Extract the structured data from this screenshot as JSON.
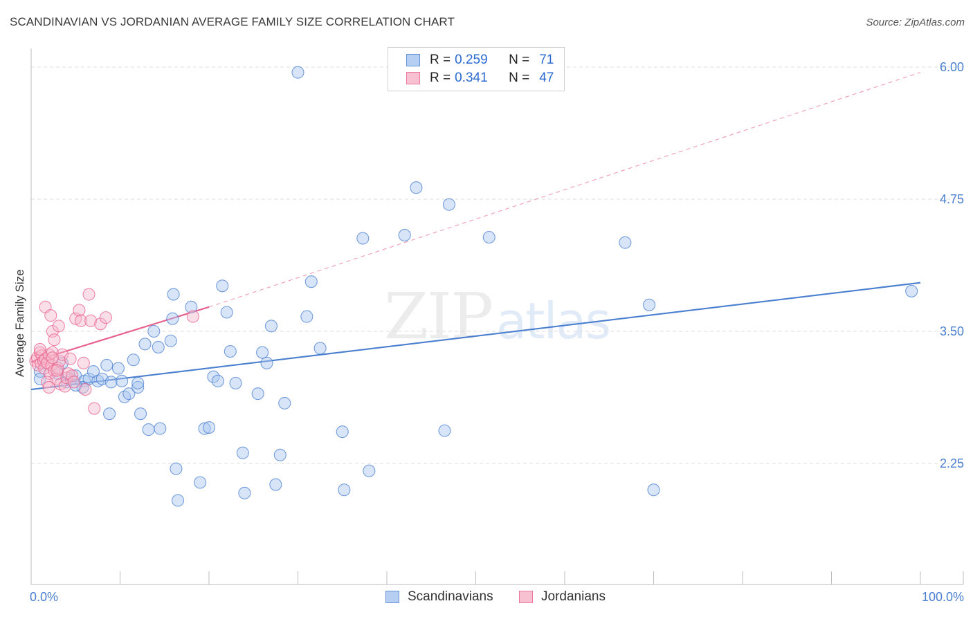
{
  "header": {
    "title": "SCANDINAVIAN VS JORDANIAN AVERAGE FAMILY SIZE CORRELATION CHART",
    "source": "Source: ZipAtlas.com"
  },
  "watermark": {
    "zip": "ZIP",
    "atlas": "atlas"
  },
  "legend": {
    "rows": [
      {
        "r_label": "R =",
        "r_value": "0.259",
        "n_label": "N =",
        "n_value": "71",
        "color": "#8fb4e8"
      },
      {
        "r_label": "R =",
        "r_value": "0.341",
        "n_label": "N =",
        "n_value": "47",
        "color": "#f2a0bc"
      }
    ]
  },
  "bottom_legend": {
    "items": [
      {
        "label": "Scandinavians",
        "color": "#8fb4e8"
      },
      {
        "label": "Jordanians",
        "color": "#f2a0bc"
      }
    ]
  },
  "chart_data": {
    "type": "scatter",
    "xlabel": "",
    "ylabel": "Average Family Size",
    "xlim": [
      0,
      100
    ],
    "ylim": [
      1.0,
      6.25
    ],
    "x_tick_labels": [
      "0.0%",
      "100.0%"
    ],
    "y_ticks": [
      2.25,
      3.5,
      4.75,
      6.0
    ],
    "y_tick_labels": [
      "2.25",
      "3.50",
      "4.75",
      "6.00"
    ],
    "grid": true,
    "series": [
      {
        "name": "Scandinavians",
        "color": "#4a7fd0",
        "fill": "#a9c6ef",
        "trend": {
          "x": [
            0,
            100
          ],
          "y": [
            2.95,
            3.96
          ],
          "style": "solid"
        },
        "points": [
          [
            1,
            3.12
          ],
          [
            1,
            3.05
          ],
          [
            3,
            3.1
          ],
          [
            3.5,
            3.2
          ],
          [
            4,
            3.02
          ],
          [
            4.5,
            3.05
          ],
          [
            5,
            3.08
          ],
          [
            6,
            3.03
          ],
          [
            6.5,
            3.05
          ],
          [
            5.8,
            2.97
          ],
          [
            7,
            3.12
          ],
          [
            7.5,
            3.03
          ],
          [
            8,
            3.05
          ],
          [
            8.5,
            3.18
          ],
          [
            9,
            3.02
          ],
          [
            9.8,
            3.15
          ],
          [
            10.2,
            3.03
          ],
          [
            10.5,
            2.88
          ],
          [
            11,
            2.91
          ],
          [
            11.5,
            3.23
          ],
          [
            12,
            2.97
          ],
          [
            12.8,
            3.38
          ],
          [
            12.3,
            2.72
          ],
          [
            8.8,
            2.72
          ],
          [
            13.8,
            3.5
          ],
          [
            14.3,
            3.35
          ],
          [
            15.7,
            3.41
          ],
          [
            15.9,
            3.62
          ],
          [
            14.5,
            2.58
          ],
          [
            16,
            3.85
          ],
          [
            16.3,
            2.2
          ],
          [
            16.5,
            1.9
          ],
          [
            18,
            3.73
          ],
          [
            19,
            2.07
          ],
          [
            19.5,
            2.58
          ],
          [
            20,
            2.59
          ],
          [
            20.5,
            3.07
          ],
          [
            21,
            3.03
          ],
          [
            21.5,
            3.93
          ],
          [
            22,
            3.68
          ],
          [
            22.4,
            3.31
          ],
          [
            23,
            3.01
          ],
          [
            23.8,
            2.35
          ],
          [
            24,
            1.97
          ],
          [
            25.5,
            2.91
          ],
          [
            26,
            3.3
          ],
          [
            26.5,
            3.2
          ],
          [
            27,
            3.55
          ],
          [
            27.5,
            2.05
          ],
          [
            28,
            2.33
          ],
          [
            28.5,
            2.82
          ],
          [
            31,
            3.64
          ],
          [
            31.5,
            3.97
          ],
          [
            32.5,
            3.34
          ],
          [
            35,
            2.55
          ],
          [
            35.2,
            2.0
          ],
          [
            37.3,
            4.38
          ],
          [
            38,
            2.18
          ],
          [
            30,
            5.95
          ],
          [
            42,
            4.41
          ],
          [
            43.3,
            4.86
          ],
          [
            46.5,
            2.56
          ],
          [
            47,
            4.7
          ],
          [
            51.5,
            4.39
          ],
          [
            66.8,
            4.34
          ],
          [
            69.5,
            3.75
          ],
          [
            70,
            2.0
          ],
          [
            99,
            3.88
          ],
          [
            13.2,
            2.57
          ],
          [
            12,
            3.01
          ],
          [
            5,
            2.99
          ]
        ]
      },
      {
        "name": "Jordanians",
        "color": "#e8628e",
        "fill": "#f6b7cb",
        "trend": {
          "x": [
            0,
            20
          ],
          "y": [
            3.21,
            3.73
          ],
          "style": "solid",
          "extended_x": [
            20,
            100
          ],
          "extended_y": [
            3.73,
            5.95
          ],
          "extended_style": "dashed"
        },
        "points": [
          [
            0.5,
            3.22
          ],
          [
            0.7,
            3.25
          ],
          [
            0.8,
            3.18
          ],
          [
            1,
            3.3
          ],
          [
            1.1,
            3.2
          ],
          [
            1.2,
            3.27
          ],
          [
            1.4,
            3.22
          ],
          [
            1.5,
            3.15
          ],
          [
            1.6,
            3.24
          ],
          [
            1.8,
            3.2
          ],
          [
            2.0,
            3.28
          ],
          [
            2.1,
            3.1
          ],
          [
            2.3,
            3.18
          ],
          [
            2.4,
            3.3
          ],
          [
            2.6,
            3.13
          ],
          [
            2.8,
            3.05
          ],
          [
            3.0,
            3.15
          ],
          [
            3.2,
            3.22
          ],
          [
            1.6,
            3.73
          ],
          [
            1.8,
            3.02
          ],
          [
            2.0,
            2.97
          ],
          [
            2.2,
            3.65
          ],
          [
            2.4,
            3.5
          ],
          [
            2.6,
            3.42
          ],
          [
            2.9,
            3.13
          ],
          [
            3.1,
            3.55
          ],
          [
            3.3,
            3.0
          ],
          [
            3.5,
            3.28
          ],
          [
            3.8,
            2.98
          ],
          [
            4.0,
            3.06
          ],
          [
            4.2,
            3.1
          ],
          [
            4.4,
            3.24
          ],
          [
            4.6,
            3.08
          ],
          [
            4.8,
            3.02
          ],
          [
            5.0,
            3.62
          ],
          [
            5.4,
            3.7
          ],
          [
            5.6,
            3.6
          ],
          [
            5.9,
            3.2
          ],
          [
            6.1,
            2.95
          ],
          [
            6.5,
            3.85
          ],
          [
            6.7,
            3.6
          ],
          [
            7.1,
            2.77
          ],
          [
            7.8,
            3.57
          ],
          [
            8.4,
            3.63
          ],
          [
            1.0,
            3.33
          ],
          [
            2.4,
            3.25
          ],
          [
            18.2,
            3.64
          ]
        ]
      }
    ]
  }
}
